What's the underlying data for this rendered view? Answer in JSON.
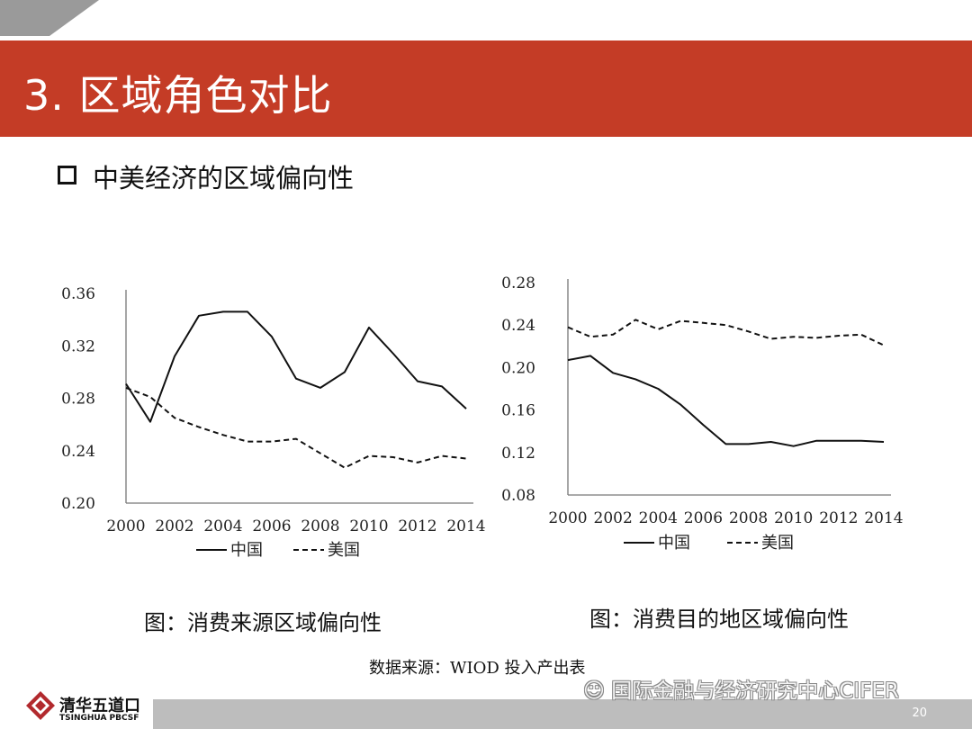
{
  "slide": {
    "title": "3.  区域角色对比",
    "subtitle": "中美经济的区域偏向性",
    "caption_left": "图：消费来源区域偏向性",
    "caption_right": "图：消费目的地区域偏向性",
    "source": "数据来源：WIOD 投入产出表",
    "page_number": "20",
    "watermark": "国际金融与经济研究中心CIFER",
    "logo": {
      "cn": "清华五道口",
      "en": "TSINGHUA PBCSF"
    }
  },
  "colors": {
    "title_bar": "#c43c26",
    "footer_bar": "#bdbdbd"
  },
  "chart_data": [
    {
      "type": "line",
      "title": "",
      "xlabel": "",
      "ylabel": "",
      "x": [
        2000,
        2001,
        2002,
        2003,
        2004,
        2005,
        2006,
        2007,
        2008,
        2009,
        2010,
        2011,
        2012,
        2013,
        2014
      ],
      "x_ticks": [
        "2000",
        "2002",
        "2004",
        "2006",
        "2008",
        "2010",
        "2012",
        "2014"
      ],
      "y_ticks": [
        "0.20",
        "0.24",
        "0.28",
        "0.32",
        "0.36"
      ],
      "ylim": [
        0.2,
        0.36
      ],
      "xlim": [
        2000,
        2014
      ],
      "legend": "bottom-center",
      "grid": false,
      "series": [
        {
          "name": "中国",
          "style": "solid",
          "values": [
            0.291,
            0.262,
            0.312,
            0.343,
            0.346,
            0.346,
            0.327,
            0.295,
            0.288,
            0.3,
            0.334,
            0.314,
            0.293,
            0.289,
            0.272
          ]
        },
        {
          "name": "美国",
          "style": "dashed",
          "values": [
            0.288,
            0.281,
            0.265,
            0.258,
            0.252,
            0.247,
            0.247,
            0.249,
            0.238,
            0.227,
            0.236,
            0.235,
            0.231,
            0.236,
            0.234
          ]
        }
      ]
    },
    {
      "type": "line",
      "title": "",
      "xlabel": "",
      "ylabel": "",
      "x": [
        2000,
        2001,
        2002,
        2003,
        2004,
        2005,
        2006,
        2007,
        2008,
        2009,
        2010,
        2011,
        2012,
        2013,
        2014
      ],
      "x_ticks": [
        "2000",
        "2002",
        "2004",
        "2006",
        "2008",
        "2010",
        "2012",
        "2014"
      ],
      "y_ticks": [
        "0.08",
        "0.12",
        "0.16",
        "0.20",
        "0.24",
        "0.28"
      ],
      "ylim": [
        0.08,
        0.28
      ],
      "xlim": [
        2000,
        2014
      ],
      "legend": "bottom-center",
      "grid": false,
      "series": [
        {
          "name": "中国",
          "style": "solid",
          "values": [
            0.207,
            0.211,
            0.195,
            0.189,
            0.18,
            0.165,
            0.146,
            0.128,
            0.128,
            0.13,
            0.126,
            0.131,
            0.131,
            0.131,
            0.13
          ]
        },
        {
          "name": "美国",
          "style": "dashed",
          "values": [
            0.238,
            0.229,
            0.231,
            0.245,
            0.236,
            0.244,
            0.242,
            0.24,
            0.234,
            0.227,
            0.229,
            0.228,
            0.23,
            0.231,
            0.221
          ]
        }
      ]
    }
  ]
}
